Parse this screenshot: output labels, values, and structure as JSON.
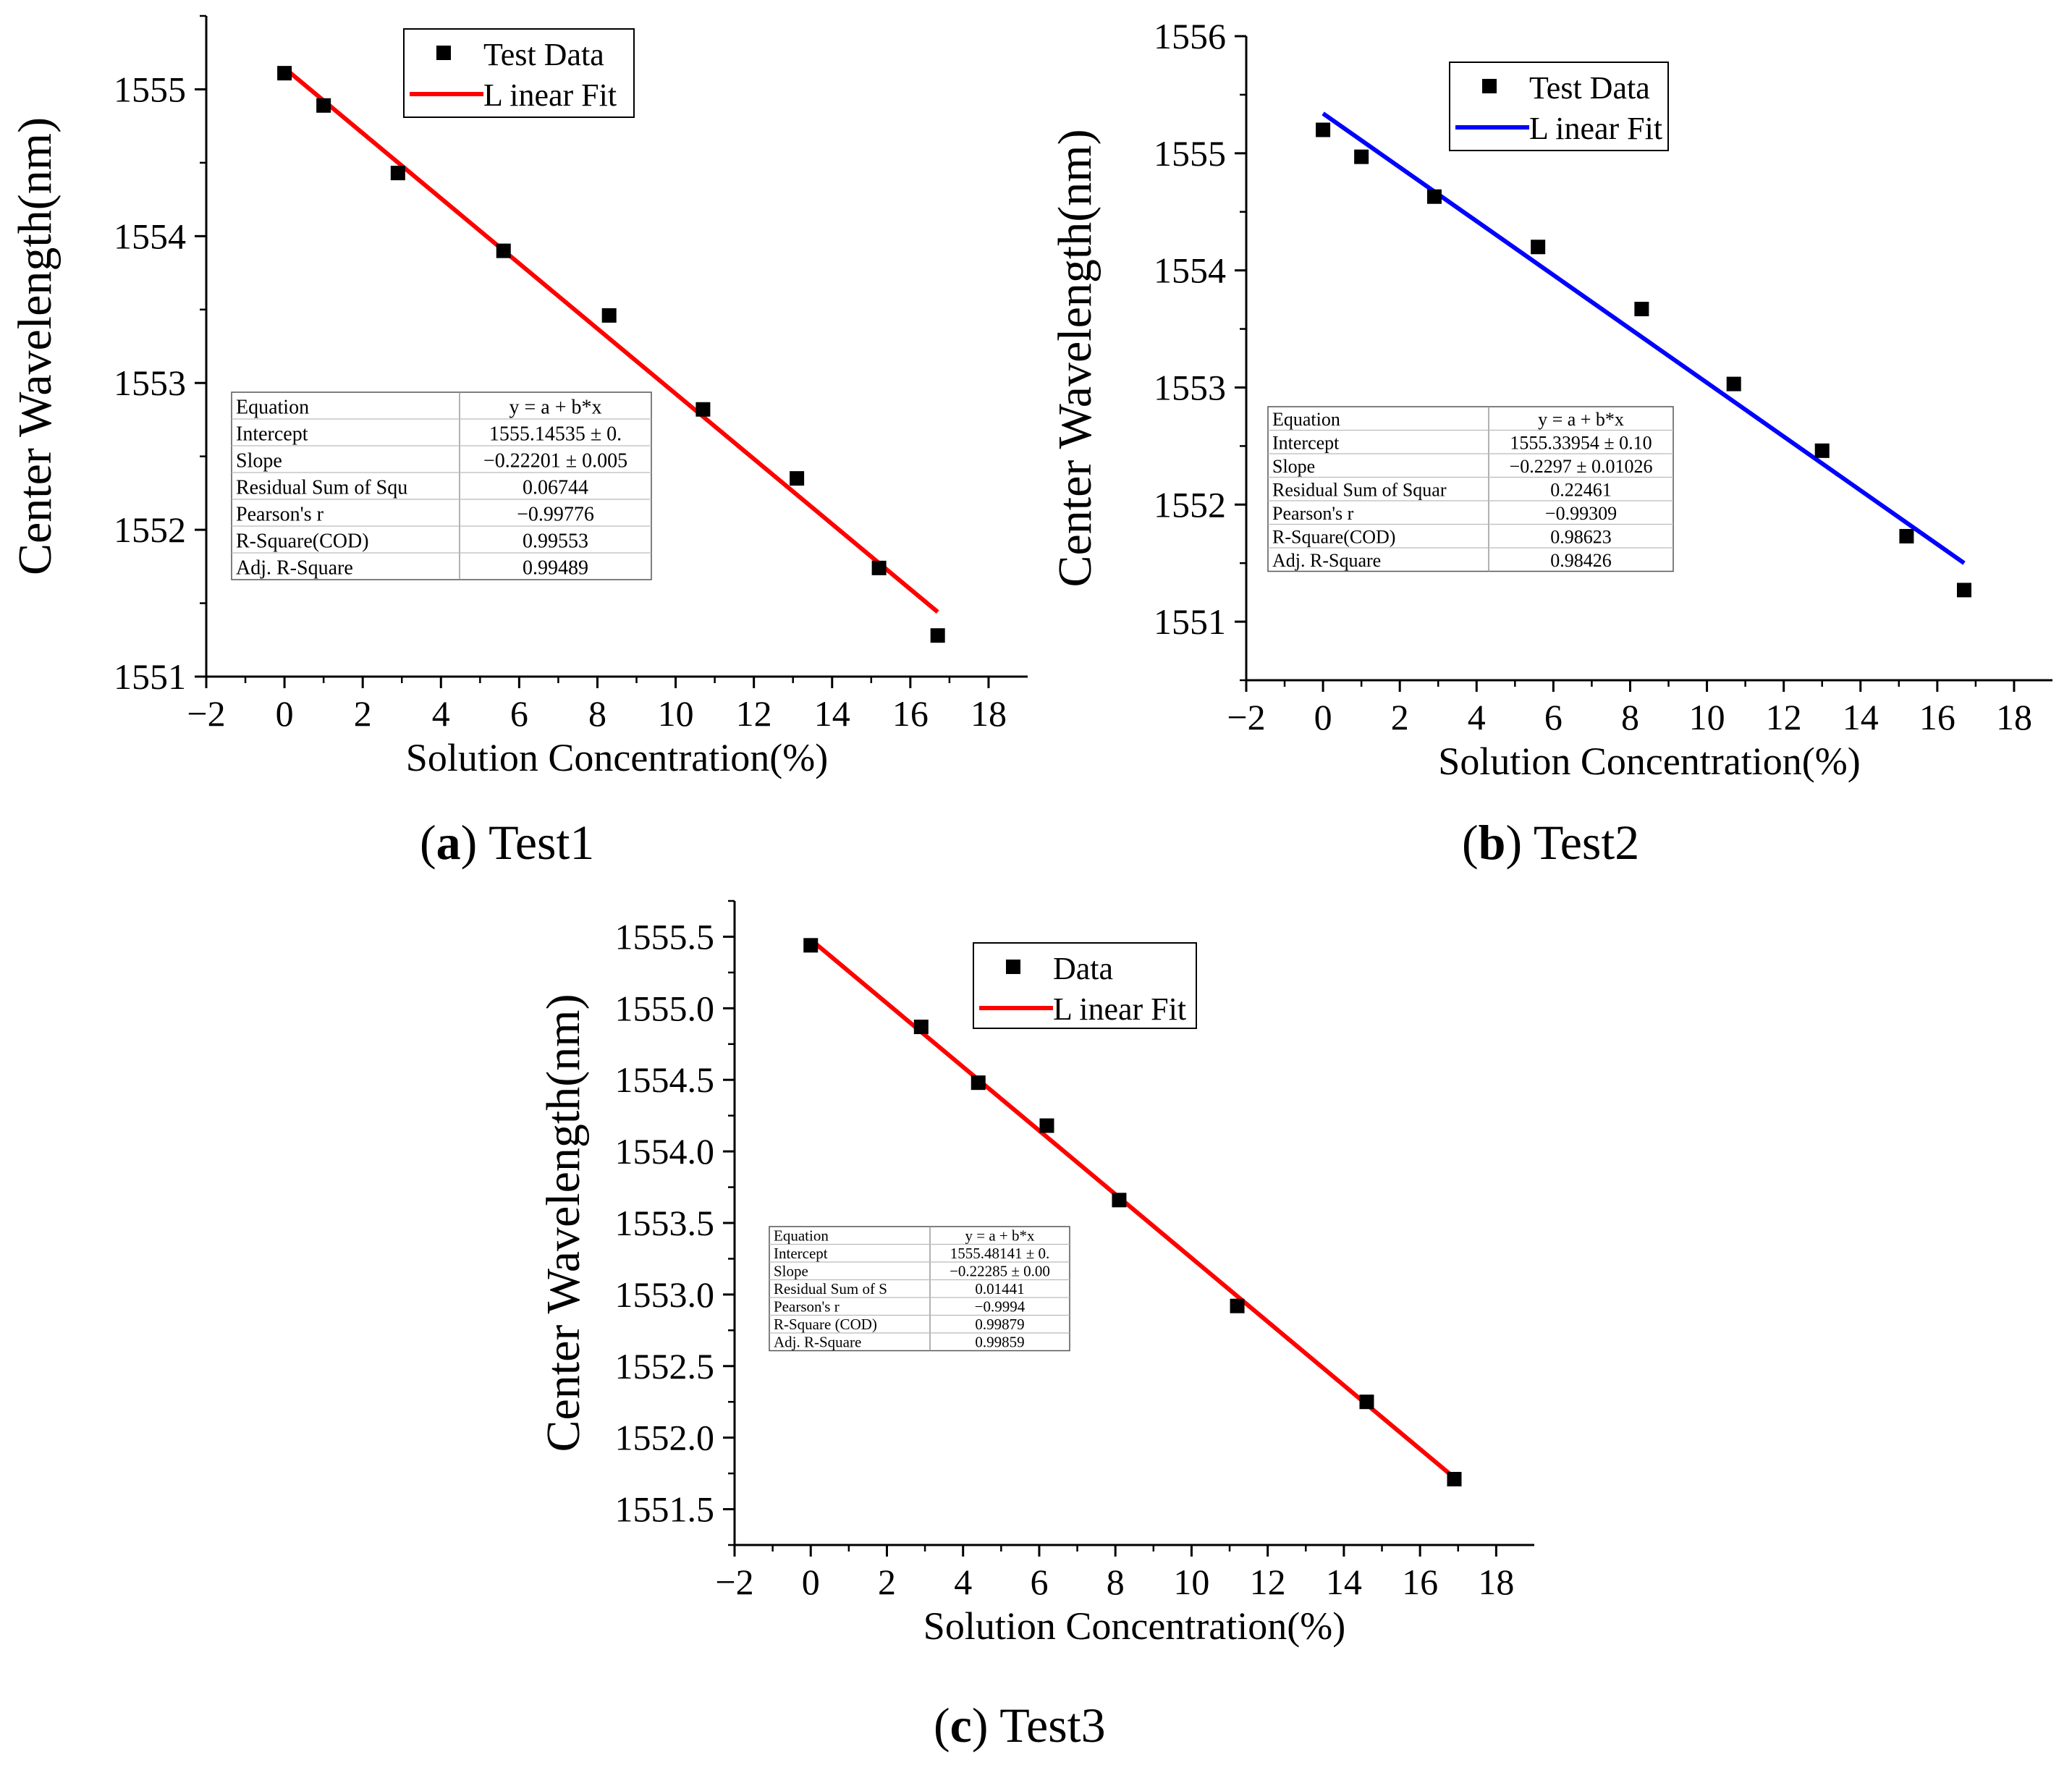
{
  "chart_data": [
    {
      "id": "a",
      "type": "scatter",
      "caption_letter": "a",
      "caption_text": "Test1",
      "xlabel": "Solution Concentration(%)",
      "ylabel": "Center Wavelength(nm)",
      "xlim": [
        -2,
        19
      ],
      "ylim": [
        1551,
        1555.5
      ],
      "xticks": [
        -2,
        0,
        2,
        4,
        6,
        8,
        10,
        12,
        14,
        16,
        18
      ],
      "xtick_labels": [
        "−2",
        "0",
        "2",
        "4",
        "6",
        "8",
        "10",
        "12",
        "14",
        "16",
        "18"
      ],
      "yticks": [
        1551,
        1552,
        1553,
        1554,
        1555
      ],
      "ytick_labels": [
        "1551",
        "1552",
        "1553",
        "1554",
        "1555"
      ],
      "fit_color": "#ff0000",
      "legend": {
        "data_label": "Test Data",
        "fit_label": "L inear Fit"
      },
      "series": [
        {
          "name": "Test Data",
          "x": [
            0,
            1,
            2.9,
            5.6,
            8.3,
            10.7,
            13.1,
            15.2,
            16.7
          ],
          "y": [
            1555.11,
            1554.89,
            1554.43,
            1553.9,
            1553.46,
            1552.82,
            1552.35,
            1551.74,
            1551.28
          ]
        },
        {
          "name": "L inear Fit",
          "x": [
            0,
            16.7
          ],
          "y": [
            1555.145,
            1551.44
          ]
        }
      ],
      "stats_table": [
        [
          "Equation",
          "y = a + b*x"
        ],
        [
          "Intercept",
          "1555.14535 ± 0."
        ],
        [
          "Slope",
          "−0.22201 ± 0.005"
        ],
        [
          "Residual Sum of Squ",
          "0.06744"
        ],
        [
          "Pearson's r",
          "−0.99776"
        ],
        [
          "R-Square(COD)",
          "0.99553"
        ],
        [
          "Adj. R-Square",
          "0.99489"
        ]
      ]
    },
    {
      "id": "b",
      "type": "scatter",
      "caption_letter": "b",
      "caption_text": "Test2",
      "xlabel": "Solution Concentration(%)",
      "ylabel": "Center Wavelength(nm)",
      "xlim": [
        -2,
        19
      ],
      "ylim": [
        1550.5,
        1556
      ],
      "xticks": [
        -2,
        0,
        2,
        4,
        6,
        8,
        10,
        12,
        14,
        16,
        18
      ],
      "xtick_labels": [
        "−2",
        "0",
        "2",
        "4",
        "6",
        "8",
        "10",
        "12",
        "14",
        "16",
        "18"
      ],
      "yticks": [
        1551,
        1552,
        1553,
        1554,
        1555,
        1556
      ],
      "ytick_labels": [
        "1551",
        "1552",
        "1553",
        "1554",
        "1555",
        "1556"
      ],
      "fit_color": "#0000ff",
      "legend": {
        "data_label": "Test Data",
        "fit_label": "L inear Fit"
      },
      "series": [
        {
          "name": "Test Data",
          "x": [
            0,
            1,
            2.9,
            5.6,
            8.3,
            10.7,
            13.0,
            15.2,
            16.7
          ],
          "y": [
            1555.2,
            1554.97,
            1554.63,
            1554.2,
            1553.67,
            1553.03,
            1552.46,
            1551.73,
            1551.27
          ]
        },
        {
          "name": "L inear Fit",
          "x": [
            0,
            16.7
          ],
          "y": [
            1555.34,
            1551.5
          ]
        }
      ],
      "stats_table": [
        [
          "Equation",
          "y = a + b*x"
        ],
        [
          "Intercept",
          "1555.33954 ± 0.10"
        ],
        [
          "Slope",
          "−0.2297 ± 0.01026"
        ],
        [
          "Residual Sum of Squar",
          "0.22461"
        ],
        [
          "Pearson's r",
          "−0.99309"
        ],
        [
          "R-Square(COD)",
          "0.98623"
        ],
        [
          "Adj. R-Square",
          "0.98426"
        ]
      ]
    },
    {
      "id": "c",
      "type": "scatter",
      "caption_letter": "c",
      "caption_text": "Test3",
      "xlabel": "Solution Concentration(%)",
      "ylabel": "Center Wavelength(nm)",
      "xlim": [
        -2,
        19
      ],
      "ylim": [
        1551.25,
        1555.75
      ],
      "xticks": [
        -2,
        0,
        2,
        4,
        6,
        8,
        10,
        12,
        14,
        16,
        18
      ],
      "xtick_labels": [
        "−2",
        "0",
        "2",
        "4",
        "6",
        "8",
        "10",
        "12",
        "14",
        "16",
        "18"
      ],
      "yticks": [
        1551.5,
        1552.0,
        1552.5,
        1553.0,
        1553.5,
        1554.0,
        1554.5,
        1555.0,
        1555.5
      ],
      "ytick_labels": [
        "1551.5",
        "1552.0",
        "1552.5",
        "1553.0",
        "1553.5",
        "1554.0",
        "1554.5",
        "1555.0",
        "1555.5"
      ],
      "fit_color": "#ff0000",
      "legend": {
        "data_label": "Data",
        "fit_label": "L inear Fit"
      },
      "series": [
        {
          "name": "Data",
          "x": [
            0,
            2.9,
            4.4,
            6.2,
            8.1,
            11.2,
            14.6,
            16.9
          ],
          "y": [
            1555.44,
            1554.87,
            1554.48,
            1554.18,
            1553.66,
            1552.92,
            1552.25,
            1551.71
          ]
        },
        {
          "name": "L inear Fit",
          "x": [
            0,
            16.9
          ],
          "y": [
            1555.48,
            1551.72
          ]
        }
      ],
      "stats_table": [
        [
          "Equation",
          "y = a + b*x"
        ],
        [
          "Intercept",
          "1555.48141 ± 0."
        ],
        [
          "Slope",
          "−0.22285 ± 0.00"
        ],
        [
          "Residual Sum of S",
          "0.01441"
        ],
        [
          "Pearson's r",
          "−0.9994"
        ],
        [
          "R-Square (COD)",
          "0.99879"
        ],
        [
          "Adj. R-Square",
          "0.99859"
        ]
      ]
    }
  ]
}
